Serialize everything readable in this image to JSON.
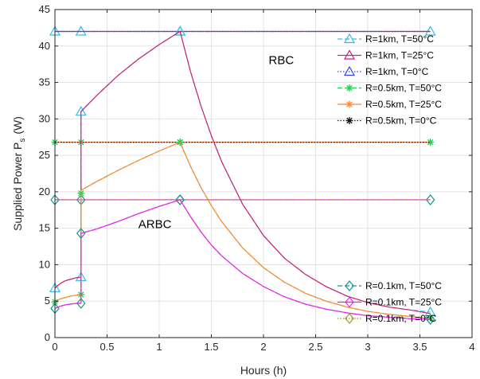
{
  "chart_data": {
    "type": "line",
    "xlabel": "Hours  (h)",
    "ylabel": "Supplied Power  P",
    "ylabel_sub": "s",
    "ylabel_unit": "(W)",
    "xlim": [
      0,
      4
    ],
    "ylim": [
      0,
      45
    ],
    "xticks": [
      0,
      0.5,
      1,
      1.5,
      2,
      2.5,
      3,
      3.5,
      4
    ],
    "yticks": [
      0,
      5,
      10,
      15,
      20,
      25,
      30,
      35,
      40,
      45
    ],
    "grid": true,
    "legend_position": "right",
    "annotations": [
      {
        "text": "RBC",
        "x": 2.05,
        "y": 37.5
      },
      {
        "text": "ARBC",
        "x": 0.8,
        "y": 15.0
      }
    ],
    "series": [
      {
        "name": "R=1km, T=50°C",
        "color": "#33bbee",
        "marker": "triangle",
        "dash": "dash",
        "strategy": "RBC",
        "points": [
          [
            0,
            42
          ],
          [
            0.25,
            42
          ],
          [
            1.2,
            42
          ],
          [
            3.6,
            42
          ]
        ],
        "markers": [
          [
            0,
            42
          ],
          [
            0.25,
            42
          ],
          [
            1.2,
            42
          ],
          [
            3.6,
            42
          ]
        ]
      },
      {
        "name": "R=1km, T=25°C",
        "color": "#cc2277",
        "marker": "triangle",
        "dash": "solid",
        "strategy": "RBC",
        "points": [
          [
            0,
            42
          ],
          [
            0.25,
            42
          ],
          [
            1.2,
            42
          ],
          [
            3.6,
            42
          ]
        ],
        "markers": []
      },
      {
        "name": "R=1km, T=0°C",
        "color": "#3344dd",
        "marker": "triangle",
        "dash": "dot",
        "strategy": "RBC",
        "points": [
          [
            0,
            42
          ],
          [
            0.25,
            42
          ],
          [
            1.2,
            42
          ],
          [
            3.6,
            42
          ]
        ],
        "markers": []
      },
      {
        "name": "R=0.5km, T=50°C",
        "color": "#22cc55",
        "marker": "asterisk",
        "dash": "dash",
        "strategy": "RBC",
        "points": [
          [
            0,
            26.8
          ],
          [
            0.25,
            26.8
          ],
          [
            1.2,
            26.8
          ],
          [
            3.6,
            26.8
          ]
        ],
        "markers": [
          [
            0,
            26.8
          ],
          [
            0.25,
            26.8
          ],
          [
            1.2,
            26.8
          ],
          [
            3.6,
            26.8
          ]
        ]
      },
      {
        "name": "R=0.5km, T=25°C",
        "color": "#ff8833",
        "marker": "asterisk",
        "dash": "solid",
        "strategy": "RBC",
        "points": [
          [
            0,
            26.8
          ],
          [
            0.25,
            26.8
          ],
          [
            1.2,
            26.8
          ],
          [
            3.6,
            26.8
          ]
        ],
        "markers": []
      },
      {
        "name": "R=0.5km, T=0°C",
        "color": "#111111",
        "marker": "asterisk",
        "dash": "dot",
        "strategy": "RBC",
        "points": [
          [
            0,
            26.8
          ],
          [
            0.25,
            26.8
          ],
          [
            1.2,
            26.8
          ],
          [
            3.6,
            26.8
          ]
        ],
        "markers": []
      },
      {
        "name": "R=0.1km, T=50°C",
        "color": "#119988",
        "marker": "diamond",
        "dash": "dash",
        "strategy": "RBC",
        "points": [
          [
            0,
            18.9
          ],
          [
            0.25,
            18.9
          ],
          [
            1.2,
            18.9
          ],
          [
            3.6,
            18.9
          ]
        ],
        "markers": [
          [
            0,
            18.9
          ],
          [
            0.25,
            18.9
          ],
          [
            1.2,
            18.9
          ],
          [
            3.6,
            18.9
          ]
        ]
      },
      {
        "name": "R=0.1km, T=25°C",
        "color": "#ee22ee",
        "marker": "diamond",
        "dash": "solid",
        "strategy": "RBC",
        "points": [
          [
            0,
            18.9
          ],
          [
            0.25,
            18.9
          ],
          [
            1.2,
            18.9
          ],
          [
            3.6,
            18.9
          ]
        ],
        "markers": []
      },
      {
        "name": "R=0.1km, T=0°C",
        "color": "#999922",
        "marker": "diamond",
        "dash": "dot",
        "strategy": "RBC",
        "points": [
          [
            0,
            18.9
          ],
          [
            0.25,
            18.9
          ],
          [
            1.2,
            18.9
          ],
          [
            3.6,
            18.9
          ]
        ],
        "markers": []
      },
      {
        "color": "#33bbee",
        "marker": "triangle",
        "dash": "dash",
        "strategy": "ARBC",
        "points": [
          [
            0,
            6.8
          ],
          [
            0.05,
            7.4
          ],
          [
            0.1,
            7.8
          ],
          [
            0.15,
            8.0
          ],
          [
            0.2,
            8.2
          ],
          [
            0.25,
            8.3
          ],
          [
            0.25,
            31.0
          ],
          [
            0.4,
            33.2
          ],
          [
            0.6,
            35.9
          ],
          [
            0.8,
            38.2
          ],
          [
            1.0,
            40.2
          ],
          [
            1.2,
            42
          ],
          [
            1.3,
            36.5
          ],
          [
            1.4,
            31.8
          ],
          [
            1.5,
            27.7
          ],
          [
            1.6,
            24.1
          ],
          [
            1.8,
            18.3
          ],
          [
            2.0,
            14.0
          ],
          [
            2.2,
            10.9
          ],
          [
            2.4,
            8.7
          ],
          [
            2.6,
            7.0
          ],
          [
            2.8,
            5.7
          ],
          [
            3.0,
            4.8
          ],
          [
            3.2,
            4.2
          ],
          [
            3.4,
            3.8
          ],
          [
            3.6,
            3.5
          ]
        ],
        "markers": [
          [
            0,
            6.8
          ],
          [
            0.25,
            8.3
          ],
          [
            0.25,
            31.0
          ],
          [
            1.2,
            42
          ],
          [
            3.6,
            3.5
          ]
        ]
      },
      {
        "color": "#cc2277",
        "marker": "triangle",
        "dash": "solid",
        "strategy": "ARBC",
        "points": [
          [
            0,
            6.8
          ],
          [
            0.05,
            7.4
          ],
          [
            0.1,
            7.8
          ],
          [
            0.15,
            8.0
          ],
          [
            0.2,
            8.2
          ],
          [
            0.25,
            8.3
          ],
          [
            0.25,
            31.0
          ],
          [
            0.4,
            33.2
          ],
          [
            0.6,
            35.9
          ],
          [
            0.8,
            38.2
          ],
          [
            1.0,
            40.2
          ],
          [
            1.2,
            42
          ],
          [
            1.3,
            36.5
          ],
          [
            1.4,
            31.8
          ],
          [
            1.5,
            27.7
          ],
          [
            1.6,
            24.1
          ],
          [
            1.8,
            18.3
          ],
          [
            2.0,
            14.0
          ],
          [
            2.2,
            10.9
          ],
          [
            2.4,
            8.7
          ],
          [
            2.6,
            7.0
          ],
          [
            2.8,
            5.7
          ],
          [
            3.0,
            4.8
          ],
          [
            3.2,
            4.2
          ],
          [
            3.4,
            3.8
          ],
          [
            3.6,
            3.3
          ]
        ],
        "markers": []
      },
      {
        "color": "#22cc55",
        "marker": "asterisk",
        "dash": "dash",
        "strategy": "ARBC",
        "points": [
          [
            0,
            4.9
          ],
          [
            0.05,
            5.3
          ],
          [
            0.1,
            5.5
          ],
          [
            0.15,
            5.7
          ],
          [
            0.2,
            5.8
          ],
          [
            0.25,
            5.9
          ],
          [
            0.25,
            19.8
          ],
          [
            0.25,
            20.2
          ],
          [
            0.4,
            21.4
          ],
          [
            0.6,
            22.9
          ],
          [
            0.8,
            24.3
          ],
          [
            1.0,
            25.6
          ],
          [
            1.2,
            26.8
          ],
          [
            1.3,
            23.5
          ],
          [
            1.4,
            20.6
          ],
          [
            1.5,
            18.1
          ],
          [
            1.6,
            15.9
          ],
          [
            1.8,
            12.3
          ],
          [
            2.0,
            9.6
          ],
          [
            2.2,
            7.6
          ],
          [
            2.4,
            6.1
          ],
          [
            2.6,
            5.0
          ],
          [
            2.8,
            4.2
          ],
          [
            3.0,
            3.6
          ],
          [
            3.2,
            3.2
          ],
          [
            3.4,
            2.9
          ],
          [
            3.6,
            2.7
          ]
        ],
        "markers": [
          [
            0,
            4.9
          ],
          [
            0.25,
            5.9
          ],
          [
            0.25,
            19.8
          ],
          [
            1.2,
            26.8
          ],
          [
            3.6,
            2.7
          ]
        ]
      },
      {
        "color": "#ff8833",
        "marker": "asterisk",
        "dash": "solid",
        "strategy": "ARBC",
        "points": [
          [
            0,
            4.9
          ],
          [
            0.05,
            5.3
          ],
          [
            0.1,
            5.5
          ],
          [
            0.15,
            5.7
          ],
          [
            0.2,
            5.8
          ],
          [
            0.25,
            5.9
          ],
          [
            0.25,
            20.2
          ],
          [
            0.4,
            21.4
          ],
          [
            0.6,
            22.9
          ],
          [
            0.8,
            24.3
          ],
          [
            1.0,
            25.6
          ],
          [
            1.2,
            26.8
          ],
          [
            1.3,
            23.5
          ],
          [
            1.4,
            20.6
          ],
          [
            1.5,
            18.1
          ],
          [
            1.6,
            15.9
          ],
          [
            1.8,
            12.3
          ],
          [
            2.0,
            9.6
          ],
          [
            2.2,
            7.6
          ],
          [
            2.4,
            6.1
          ],
          [
            2.6,
            5.0
          ],
          [
            2.8,
            4.2
          ],
          [
            3.0,
            3.6
          ],
          [
            3.2,
            3.2
          ],
          [
            3.4,
            2.9
          ],
          [
            3.6,
            2.6
          ]
        ],
        "markers": []
      },
      {
        "color": "#119988",
        "marker": "diamond",
        "dash": "dash",
        "strategy": "ARBC",
        "points": [
          [
            0,
            4.0
          ],
          [
            0.05,
            4.3
          ],
          [
            0.1,
            4.5
          ],
          [
            0.15,
            4.6
          ],
          [
            0.2,
            4.7
          ],
          [
            0.25,
            4.7
          ],
          [
            0.25,
            14.3
          ],
          [
            0.4,
            14.9
          ],
          [
            0.6,
            15.9
          ],
          [
            0.8,
            17.0
          ],
          [
            1.0,
            18.0
          ],
          [
            1.2,
            18.9
          ],
          [
            1.3,
            16.6
          ],
          [
            1.4,
            14.5
          ],
          [
            1.5,
            12.7
          ],
          [
            1.6,
            11.2
          ],
          [
            1.8,
            8.8
          ],
          [
            2.0,
            7.0
          ],
          [
            2.2,
            5.6
          ],
          [
            2.4,
            4.6
          ],
          [
            2.6,
            3.9
          ],
          [
            2.8,
            3.4
          ],
          [
            3.0,
            3.0
          ],
          [
            3.2,
            2.8
          ],
          [
            3.4,
            2.6
          ],
          [
            3.6,
            2.5
          ]
        ],
        "markers": [
          [
            0,
            4.0
          ],
          [
            0.25,
            4.7
          ],
          [
            0.25,
            14.3
          ],
          [
            1.2,
            18.9
          ],
          [
            3.6,
            2.5
          ]
        ]
      },
      {
        "color": "#ee22ee",
        "marker": "diamond",
        "dash": "solid",
        "strategy": "ARBC",
        "points": [
          [
            0,
            4.0
          ],
          [
            0.05,
            4.3
          ],
          [
            0.1,
            4.5
          ],
          [
            0.15,
            4.6
          ],
          [
            0.2,
            4.7
          ],
          [
            0.25,
            4.7
          ],
          [
            0.25,
            14.3
          ],
          [
            0.4,
            14.9
          ],
          [
            0.6,
            15.9
          ],
          [
            0.8,
            17.0
          ],
          [
            1.0,
            18.0
          ],
          [
            1.2,
            18.9
          ],
          [
            1.3,
            16.6
          ],
          [
            1.4,
            14.5
          ],
          [
            1.5,
            12.7
          ],
          [
            1.6,
            11.2
          ],
          [
            1.8,
            8.8
          ],
          [
            2.0,
            7.0
          ],
          [
            2.2,
            5.6
          ],
          [
            2.4,
            4.6
          ],
          [
            2.6,
            3.9
          ],
          [
            2.8,
            3.4
          ],
          [
            3.0,
            3.0
          ],
          [
            3.2,
            2.8
          ],
          [
            3.4,
            2.6
          ],
          [
            3.6,
            2.5
          ]
        ],
        "markers": []
      }
    ]
  }
}
